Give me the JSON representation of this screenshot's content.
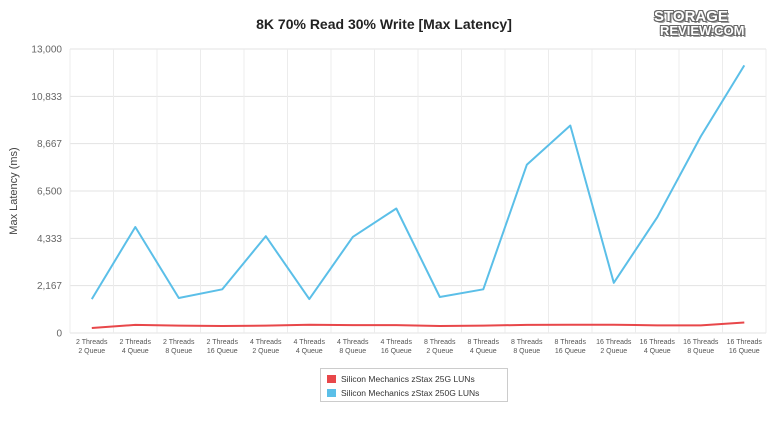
{
  "title": "8K 70% Read 30% Write [Max Latency]",
  "logo": {
    "line1": "STORAGE",
    "line2": "REVIEW.COM",
    "mark": "®"
  },
  "chart_data": {
    "type": "line",
    "title": "8K 70% Read 30% Write [Max Latency]",
    "xlabel": "",
    "ylabel": "Max Latency (ms)",
    "ylim": [
      0,
      13000
    ],
    "yticks": [
      "0",
      "2,167",
      "4,333",
      "6,500",
      "8,667",
      "10,833",
      "13,000"
    ],
    "ytick_values": [
      0,
      2167,
      4333,
      6500,
      8667,
      10833,
      13000
    ],
    "grid": true,
    "legend_position": "bottom",
    "categories": [
      [
        "2 Threads",
        "2 Queue"
      ],
      [
        "2 Threads",
        "4 Queue"
      ],
      [
        "2 Threads",
        "8 Queue"
      ],
      [
        "2 Threads",
        "16 Queue"
      ],
      [
        "4 Threads",
        "2 Queue"
      ],
      [
        "4 Threads",
        "4 Queue"
      ],
      [
        "4 Threads",
        "8 Queue"
      ],
      [
        "4 Threads",
        "16 Queue"
      ],
      [
        "8 Threads",
        "2 Queue"
      ],
      [
        "8 Threads",
        "4 Queue"
      ],
      [
        "8 Threads",
        "8 Queue"
      ],
      [
        "8 Threads",
        "16 Queue"
      ],
      [
        "16 Threads",
        "2 Queue"
      ],
      [
        "16 Threads",
        "4 Queue"
      ],
      [
        "16 Threads",
        "8 Queue"
      ],
      [
        "16 Threads",
        "16 Queue"
      ]
    ],
    "series": [
      {
        "name": "Silicon Mechanics zStax 25G LUNs",
        "color": "#e8474a",
        "values": [
          230,
          370,
          340,
          320,
          340,
          380,
          360,
          360,
          320,
          340,
          370,
          380,
          380,
          350,
          350,
          480
        ]
      },
      {
        "name": "Silicon Mechanics zStax 250G LUNs",
        "color": "#5bbfe8",
        "values": [
          1550,
          4850,
          1600,
          2000,
          4430,
          1550,
          4400,
          5700,
          1650,
          2000,
          7700,
          9500,
          2300,
          5300,
          9000,
          12250
        ]
      }
    ]
  }
}
